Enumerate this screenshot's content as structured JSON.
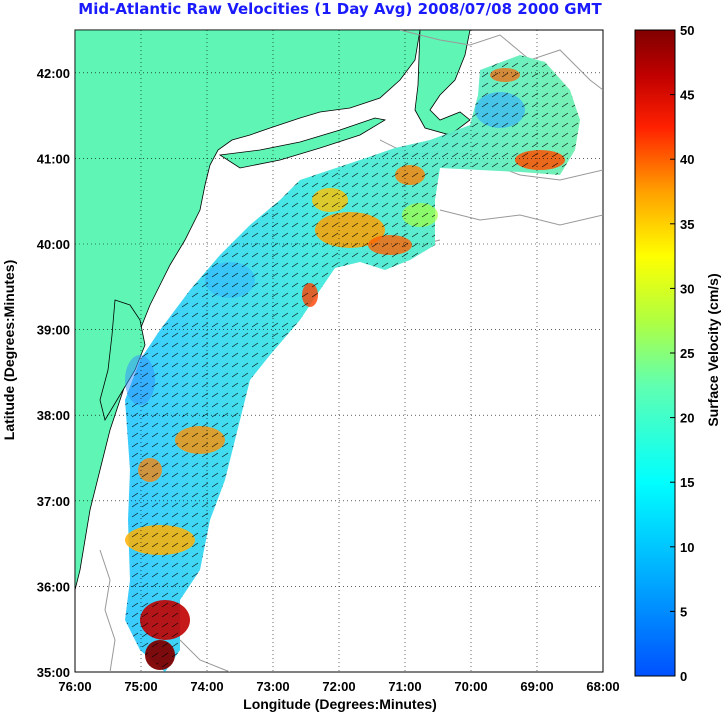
{
  "title": "Mid-Atlantic Raw Velocities (1 Day Avg) 2008/07/08 2000 GMT",
  "map": {
    "xlabel": "Longitude (Degrees:Minutes)",
    "ylabel": "Latitude (Degrees:Minutes)",
    "lon_ticks": [
      "76:00",
      "75:00",
      "74:00",
      "73:00",
      "72:00",
      "71:00",
      "70:00",
      "69:00",
      "68:00"
    ],
    "lat_ticks": [
      "42:00",
      "41:00",
      "40:00",
      "39:00",
      "38:00",
      "37:00",
      "36:00",
      "35:00"
    ],
    "lon_range": [
      -76,
      -68
    ],
    "lat_range": [
      35,
      42.5
    ],
    "land_color": "#5ff5b4",
    "grid": "dotted"
  },
  "colorbar": {
    "label": "Surface Velocity (cm/s)",
    "ticks": [
      "50",
      "45",
      "40",
      "35",
      "30",
      "25",
      "20",
      "15",
      "10",
      "5",
      "0"
    ],
    "range": [
      0,
      50
    ],
    "colormap": "jet"
  }
}
